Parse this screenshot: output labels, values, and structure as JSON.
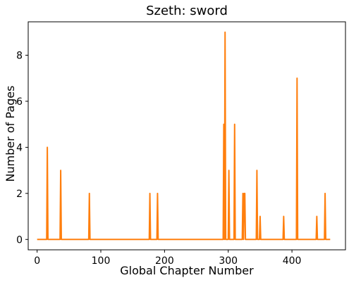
{
  "chart_data": {
    "type": "line",
    "title": "Szeth: sword",
    "xlabel": "Global Chapter Number",
    "ylabel": "Number of Pages",
    "xlim": [
      -14,
      484
    ],
    "ylim": [
      -0.45,
      9.45
    ],
    "x_ticks": [
      0,
      100,
      200,
      300,
      400
    ],
    "y_ticks": [
      0,
      2,
      4,
      6,
      8
    ],
    "grid": false,
    "line_color": "#ff7f0e",
    "series": [
      {
        "x": [
          0,
          15,
          16,
          17,
          36,
          37,
          38,
          81,
          82,
          83,
          176,
          177,
          178,
          188,
          189,
          190,
          292,
          293,
          294,
          295,
          296,
          297,
          300,
          301,
          302,
          309,
          310,
          311,
          322,
          323,
          324,
          325,
          326,
          327,
          344,
          345,
          346,
          349,
          350,
          351,
          386,
          387,
          388,
          407,
          408,
          409,
          438,
          439,
          440,
          451,
          452,
          453,
          460
        ],
        "y": [
          0,
          0,
          4,
          0,
          0,
          3,
          0,
          0,
          2,
          0,
          0,
          2,
          0,
          0,
          2,
          0,
          0,
          5,
          0,
          9,
          0,
          0,
          0,
          3,
          0,
          0,
          5,
          0,
          0,
          2,
          0,
          2,
          2,
          0,
          0,
          3,
          0,
          0,
          1,
          0,
          0,
          1,
          0,
          0,
          7,
          0,
          0,
          1,
          0,
          0,
          2,
          0,
          0
        ]
      }
    ]
  }
}
